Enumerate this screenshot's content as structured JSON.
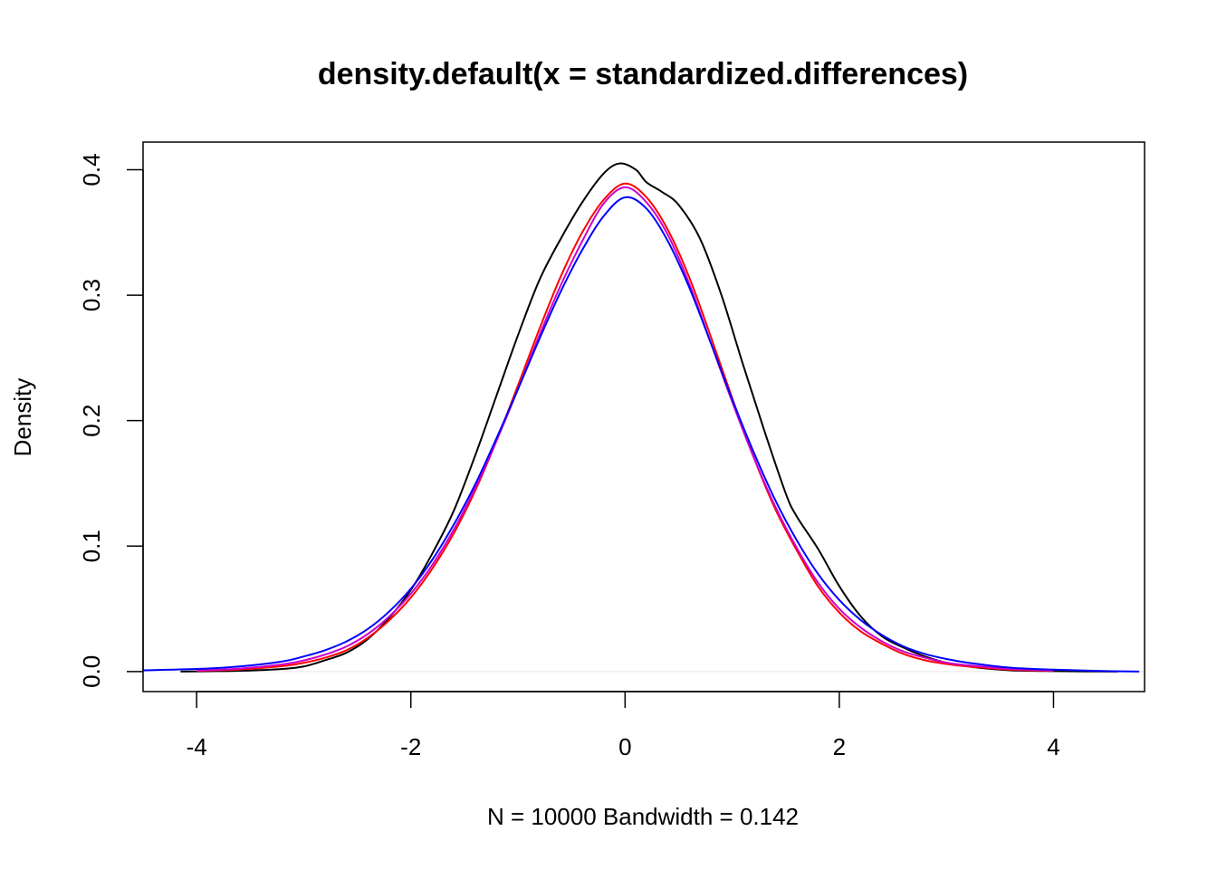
{
  "chart_data": {
    "type": "line",
    "title": "density.default(x = standardized.differences)",
    "xlabel": "N = 10000   Bandwidth = 0.142",
    "ylabel": "Density",
    "xlim": [
      -4.5,
      4.85
    ],
    "ylim": [
      -0.016,
      0.422
    ],
    "x_ticks": [
      -4,
      -2,
      0,
      2,
      4
    ],
    "x_tick_labels": [
      "-4",
      "-2",
      "0",
      "2",
      "4"
    ],
    "y_ticks": [
      0.0,
      0.1,
      0.2,
      0.3,
      0.4
    ],
    "y_tick_labels": [
      "0.0",
      "0.1",
      "0.2",
      "0.3",
      "0.4"
    ],
    "grid": false,
    "zero_line": true,
    "colors": {
      "series_black": "#000000",
      "series_red": "#ff0000",
      "series_magenta": "#cc00cc",
      "series_blue": "#0000ff",
      "zero_line": "#e6e6e6",
      "frame": "#000000"
    },
    "series": [
      {
        "color": "#000000",
        "x": [
          -4.15,
          -3.8,
          -3.5,
          -3.2,
          -3.0,
          -2.8,
          -2.6,
          -2.4,
          -2.2,
          -2.0,
          -1.8,
          -1.6,
          -1.4,
          -1.2,
          -1.0,
          -0.8,
          -0.6,
          -0.4,
          -0.2,
          -0.05,
          0.1,
          0.2,
          0.35,
          0.5,
          0.7,
          0.9,
          1.1,
          1.3,
          1.5,
          1.6,
          1.8,
          2.0,
          2.2,
          2.4,
          2.6,
          2.8,
          3.0,
          3.3,
          3.6,
          4.0,
          4.3,
          4.6
        ],
        "y": [
          0.0,
          0.0003,
          0.0008,
          0.002,
          0.004,
          0.009,
          0.015,
          0.026,
          0.043,
          0.065,
          0.094,
          0.128,
          0.172,
          0.22,
          0.268,
          0.312,
          0.345,
          0.374,
          0.397,
          0.405,
          0.4,
          0.39,
          0.382,
          0.372,
          0.345,
          0.3,
          0.245,
          0.192,
          0.142,
          0.124,
          0.098,
          0.068,
          0.044,
          0.028,
          0.019,
          0.012,
          0.007,
          0.003,
          0.001,
          0.0003,
          0.0001,
          0.0
        ]
      },
      {
        "color": "#ff0000",
        "x": [
          -4.0,
          -3.6,
          -3.2,
          -3.0,
          -2.8,
          -2.6,
          -2.4,
          -2.2,
          -2.0,
          -1.8,
          -1.6,
          -1.4,
          -1.2,
          -1.0,
          -0.8,
          -0.6,
          -0.4,
          -0.2,
          0.0,
          0.2,
          0.4,
          0.6,
          0.8,
          1.0,
          1.2,
          1.4,
          1.6,
          1.8,
          2.0,
          2.2,
          2.4,
          2.6,
          2.8,
          3.0,
          3.2,
          3.6,
          4.0
        ],
        "y": [
          0.0005,
          0.0016,
          0.0043,
          0.0069,
          0.011,
          0.017,
          0.027,
          0.041,
          0.059,
          0.082,
          0.11,
          0.144,
          0.184,
          0.228,
          0.273,
          0.315,
          0.35,
          0.376,
          0.389,
          0.378,
          0.352,
          0.314,
          0.267,
          0.218,
          0.171,
          0.13,
          0.097,
          0.068,
          0.047,
          0.032,
          0.022,
          0.014,
          0.009,
          0.006,
          0.004,
          0.0015,
          0.0005
        ]
      },
      {
        "color": "#cc00cc",
        "x": [
          -4.0,
          -3.6,
          -3.2,
          -3.0,
          -2.8,
          -2.6,
          -2.4,
          -2.2,
          -2.0,
          -1.8,
          -1.6,
          -1.4,
          -1.2,
          -1.0,
          -0.8,
          -0.6,
          -0.4,
          -0.2,
          0.0,
          0.2,
          0.4,
          0.6,
          0.8,
          1.0,
          1.2,
          1.4,
          1.6,
          1.8,
          2.0,
          2.2,
          2.4,
          2.6,
          2.8,
          3.0,
          3.2,
          3.6,
          4.0
        ],
        "y": [
          0.0008,
          0.0023,
          0.0057,
          0.0088,
          0.0135,
          0.02,
          0.03,
          0.044,
          0.062,
          0.085,
          0.113,
          0.146,
          0.184,
          0.225,
          0.268,
          0.308,
          0.343,
          0.373,
          0.386,
          0.374,
          0.348,
          0.309,
          0.262,
          0.215,
          0.171,
          0.132,
          0.099,
          0.071,
          0.05,
          0.035,
          0.024,
          0.016,
          0.011,
          0.007,
          0.005,
          0.002,
          0.0008
        ]
      },
      {
        "color": "#0000ff",
        "x": [
          -4.5,
          -4.0,
          -3.6,
          -3.2,
          -3.0,
          -2.8,
          -2.6,
          -2.4,
          -2.2,
          -2.0,
          -1.8,
          -1.6,
          -1.4,
          -1.2,
          -1.0,
          -0.8,
          -0.6,
          -0.4,
          -0.2,
          0.0,
          0.2,
          0.4,
          0.6,
          0.8,
          1.0,
          1.2,
          1.4,
          1.6,
          1.8,
          2.0,
          2.2,
          2.4,
          2.6,
          2.8,
          3.0,
          3.2,
          3.6,
          4.0,
          4.4,
          4.8
        ],
        "y": [
          0.001,
          0.002,
          0.004,
          0.008,
          0.012,
          0.017,
          0.024,
          0.034,
          0.048,
          0.066,
          0.089,
          0.117,
          0.149,
          0.186,
          0.225,
          0.265,
          0.303,
          0.336,
          0.363,
          0.378,
          0.369,
          0.343,
          0.306,
          0.262,
          0.217,
          0.175,
          0.137,
          0.105,
          0.078,
          0.057,
          0.041,
          0.029,
          0.02,
          0.014,
          0.01,
          0.007,
          0.003,
          0.0015,
          0.0005,
          0.0
        ]
      }
    ]
  }
}
